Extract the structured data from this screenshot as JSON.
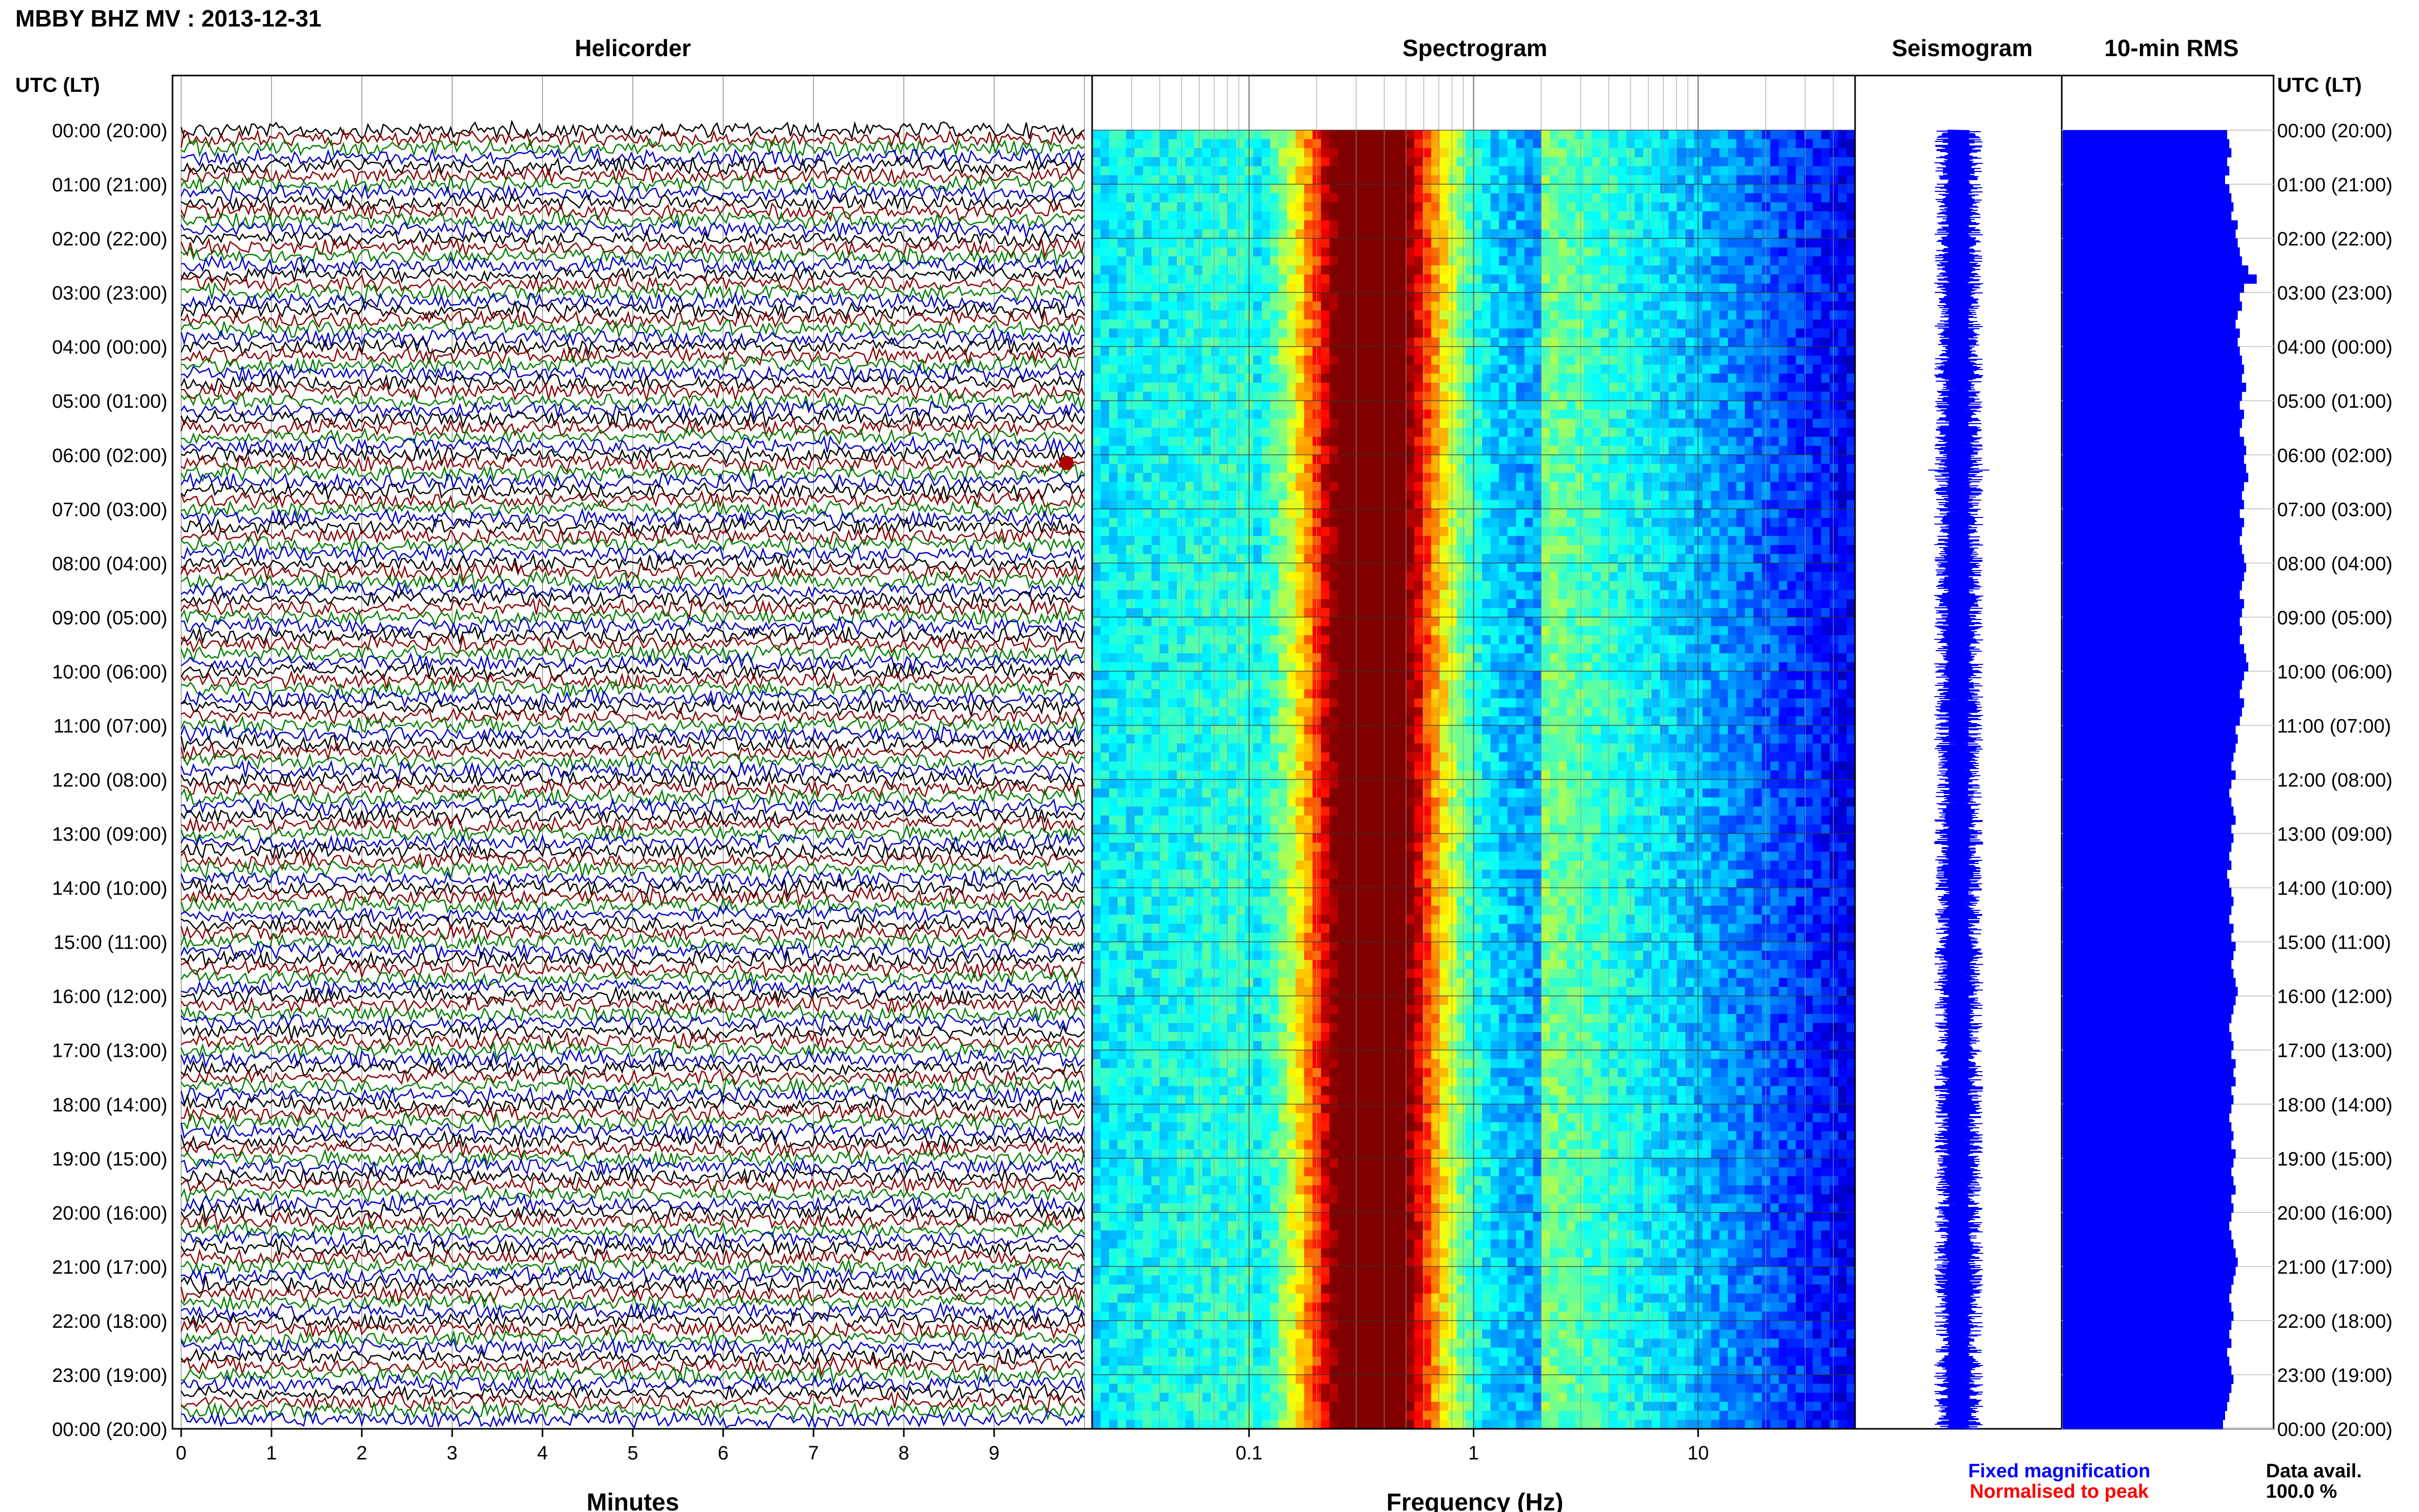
{
  "header": {
    "station_title": "MBBY BHZ MV : 2013-12-31"
  },
  "panels": {
    "helicorder_title": "Helicorder",
    "spectrogram_title": "Spectrogram",
    "seismogram_title": "Seismogram",
    "rms_title": "10-min RMS"
  },
  "axes": {
    "left_time_label": "UTC (LT)",
    "right_time_label": "UTC (LT)",
    "helicorder_xlabel": "Minutes",
    "spectrogram_xlabel": "Frequency (Hz)",
    "time_ticks": [
      "00:00 (20:00)",
      "01:00 (21:00)",
      "02:00 (22:00)",
      "03:00 (23:00)",
      "04:00 (00:00)",
      "05:00 (01:00)",
      "06:00 (02:00)",
      "07:00 (03:00)",
      "08:00 (04:00)",
      "09:00 (05:00)",
      "10:00 (06:00)",
      "11:00 (07:00)",
      "12:00 (08:00)",
      "13:00 (09:00)",
      "14:00 (10:00)",
      "15:00 (11:00)",
      "16:00 (12:00)",
      "17:00 (13:00)",
      "18:00 (14:00)",
      "19:00 (15:00)",
      "20:00 (16:00)",
      "21:00 (17:00)",
      "22:00 (18:00)",
      "23:00 (19:00)",
      "00:00 (20:00)"
    ],
    "minute_ticks": [
      "0",
      "1",
      "2",
      "3",
      "4",
      "5",
      "6",
      "7",
      "8",
      "9"
    ],
    "frequency_ticks": [
      "0.1",
      "1",
      "10"
    ]
  },
  "legend": {
    "fixed_magnification": "Fixed magnification",
    "normalised_to_peak": "Normalised to peak",
    "data_avail_label": "Data avail.",
    "data_avail_value": "100.0 %"
  },
  "colors": {
    "trace_cycle": [
      "#000000",
      "#8b0000",
      "#008000",
      "#0000cc"
    ],
    "fixed_magnification": "#0000ff",
    "normalised_to_peak": "#ff0000",
    "rms_bar": "#0000ff",
    "seismogram": "#0000ff"
  },
  "chart_data": [
    {
      "type": "line",
      "name": "helicorder",
      "x_range_minutes": [
        0,
        10
      ],
      "rows": 144,
      "trace_color_cycle": [
        "black",
        "dark red",
        "green",
        "blue"
      ]
    },
    {
      "type": "heatmap",
      "name": "spectrogram",
      "x_scale": "log",
      "x_range_hz": [
        0.02,
        50
      ],
      "peak_frequency_hz": 0.35,
      "colormap": "jet"
    },
    {
      "type": "bar",
      "name": "10-min RMS",
      "orientation": "horizontal",
      "values": [
        0.78,
        0.79,
        0.8,
        0.78,
        0.79,
        0.77,
        0.79,
        0.8,
        0.81,
        0.8,
        0.83,
        0.82,
        0.83,
        0.84,
        0.85,
        0.88,
        0.92,
        0.86,
        0.84,
        0.85,
        0.83,
        0.82,
        0.84,
        0.83,
        0.84,
        0.85,
        0.86,
        0.85,
        0.87,
        0.85,
        0.84,
        0.86,
        0.85,
        0.84,
        0.86,
        0.87,
        0.86,
        0.87,
        0.88,
        0.86,
        0.85,
        0.86,
        0.84,
        0.86,
        0.85,
        0.84,
        0.85,
        0.86,
        0.87,
        0.86,
        0.85,
        0.84,
        0.86,
        0.85,
        0.84,
        0.85,
        0.84,
        0.86,
        0.87,
        0.88,
        0.86,
        0.85,
        0.84,
        0.86,
        0.85,
        0.84,
        0.82,
        0.83,
        0.82,
        0.81,
        0.8,
        0.82,
        0.8,
        0.79,
        0.8,
        0.81,
        0.82,
        0.8,
        0.81,
        0.8,
        0.79,
        0.8,
        0.78,
        0.79,
        0.8,
        0.81,
        0.8,
        0.79,
        0.81,
        0.8,
        0.82,
        0.81,
        0.8,
        0.81,
        0.82,
        0.83,
        0.82,
        0.81,
        0.8,
        0.79,
        0.8,
        0.81,
        0.8,
        0.82,
        0.81,
        0.82,
        0.8,
        0.81,
        0.8,
        0.79,
        0.8,
        0.81,
        0.8,
        0.82,
        0.81,
        0.8,
        0.81,
        0.82,
        0.8,
        0.81,
        0.8,
        0.79,
        0.8,
        0.81,
        0.82,
        0.83,
        0.82,
        0.81,
        0.8,
        0.79,
        0.8,
        0.81,
        0.8,
        0.79,
        0.8,
        0.78,
        0.79,
        0.8,
        0.81,
        0.8,
        0.79,
        0.78,
        0.77,
        0.76
      ],
      "scale_max": 1.0
    }
  ]
}
